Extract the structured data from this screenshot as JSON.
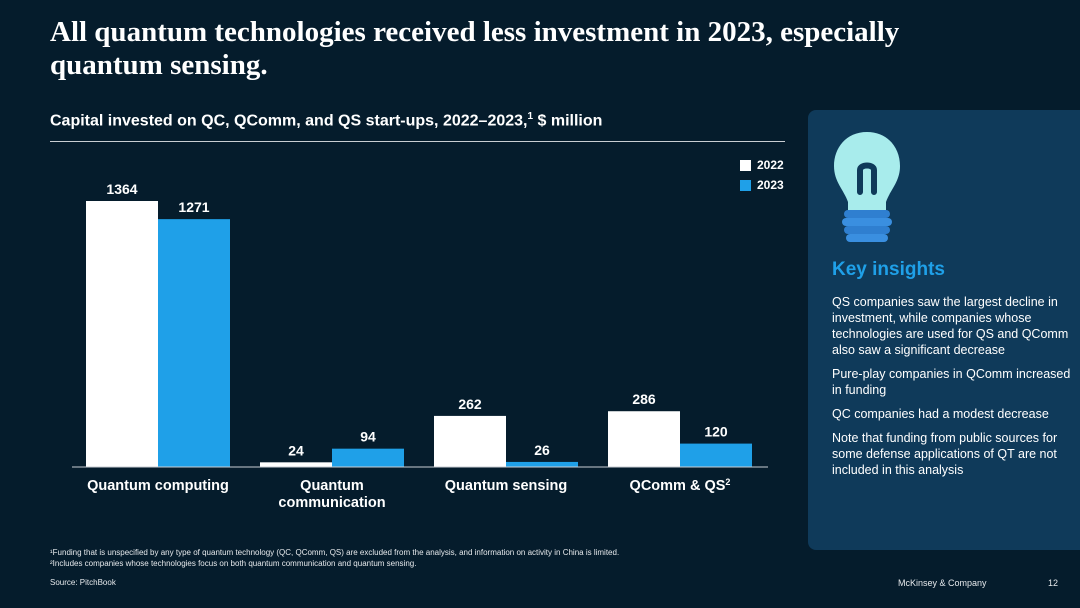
{
  "title": "All quantum technologies received less investment in 2023, especially quantum sensing.",
  "subtitle": "Capital invested on QC, QComm, and QS start-ups, 2022–2023,",
  "subtitle_sup": "1",
  "subtitle_unit": " $ million",
  "legend": [
    {
      "label": "2022",
      "color": "#ffffff"
    },
    {
      "label": "2023",
      "color": "#1fa0e8"
    }
  ],
  "chart_data": {
    "type": "bar",
    "categories": [
      "Quantum computing",
      "Quantum communication",
      "Quantum sensing",
      "QComm & QS2"
    ],
    "series": [
      {
        "name": "2022",
        "values": [
          1364,
          24,
          262,
          286
        ],
        "color": "#ffffff"
      },
      {
        "name": "2023",
        "values": [
          1271,
          94,
          26,
          120
        ],
        "color": "#1fa0e8"
      }
    ],
    "ylim": [
      0,
      1364
    ],
    "xlabel": "",
    "ylabel": "$ million"
  },
  "category_labels": [
    {
      "line1": "Quantum computing",
      "line2": "",
      "sup": ""
    },
    {
      "line1": "Quantum",
      "line2": "communication",
      "sup": ""
    },
    {
      "line1": "Quantum sensing",
      "line2": "",
      "sup": ""
    },
    {
      "line1": "QComm & QS",
      "line2": "",
      "sup": "2"
    }
  ],
  "insights_title": "Key insights",
  "insights": [
    "QS companies saw the largest decline in investment, while companies whose technologies are used for QS and QComm also saw a significant decrease",
    "Pure-play companies in QComm increased in funding",
    "QC companies had a modest decrease",
    "Note that funding from public sources for some defense applications of QT are not included in this analysis"
  ],
  "footnotes": [
    "¹Funding that is unspecified by any type of quantum technology (QC, QComm, QS) are excluded from the analysis, and information on activity in China is limited.",
    "²Includes companies whose technologies focus on both quantum communication and quantum sensing."
  ],
  "source": "Source: PitchBook",
  "brand": "McKinsey & Company",
  "page_number": "12",
  "colors": {
    "background": "#051c2c",
    "panel": "#0f3a5a",
    "accent": "#1fa0e8"
  }
}
